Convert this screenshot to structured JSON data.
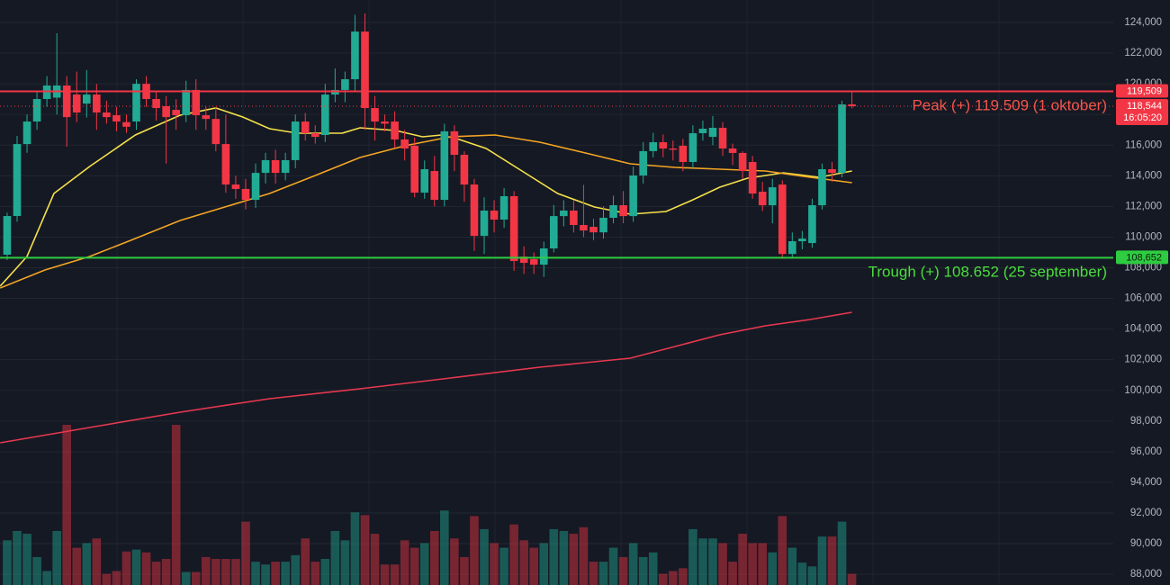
{
  "chart_data": {
    "type": "candlestick",
    "up_color": "#22ab94",
    "down_color": "#f23645",
    "grid": true,
    "xlim": [
      -0.72,
      111.3
    ],
    "ylim": [
      87300,
      125470
    ],
    "yticks": [
      {
        "value": 88000,
        "label": "88,000"
      },
      {
        "value": 90000,
        "label": "90,000"
      },
      {
        "value": 92000,
        "label": "92,000"
      },
      {
        "value": 94000,
        "label": "94,000"
      },
      {
        "value": 96000,
        "label": "96,000"
      },
      {
        "value": 98000,
        "label": "98,000"
      },
      {
        "value": 100000,
        "label": "100,000"
      },
      {
        "value": 102000,
        "label": "102,000"
      },
      {
        "value": 104000,
        "label": "104,000"
      },
      {
        "value": 106000,
        "label": "106,000"
      },
      {
        "value": 108000,
        "label": "108,000"
      },
      {
        "value": 110000,
        "label": "110,000"
      },
      {
        "value": 112000,
        "label": "112,000"
      },
      {
        "value": 114000,
        "label": "114,000"
      },
      {
        "value": 116000,
        "label": "116,000"
      },
      {
        "value": 118000,
        "label": "118,000"
      },
      {
        "value": 120000,
        "label": "120,000"
      },
      {
        "value": 122000,
        "label": "122,000"
      },
      {
        "value": 124000,
        "label": "124,000"
      }
    ],
    "open": [
      108850,
      111375,
      116070,
      117540,
      119010,
      119100,
      119890,
      119300,
      118710,
      119300,
      118130,
      117950,
      117500,
      117540,
      120000,
      119010,
      118540,
      118300,
      117950,
      119600,
      117950,
      117710,
      116070,
      113430,
      113140,
      112430,
      114190,
      115020,
      114190,
      115020,
      117540,
      116780,
      116660,
      119300,
      119600,
      120300,
      123410,
      118420,
      117540,
      117540,
      116370,
      115960,
      112900,
      114310,
      112430,
      116900,
      115370,
      113430,
      110080,
      111730,
      111140,
      112670,
      108730,
      108560,
      108200,
      109260,
      111370,
      111730,
      110790,
      110670,
      110310,
      111260,
      112080,
      111370,
      114020,
      115610,
      116190,
      115780,
      115960,
      114900,
      116780,
      116540,
      117130,
      115780,
      115490,
      114900,
      112960,
      112080,
      113430,
      108900,
      109730,
      109610,
      112080,
      114430,
      114190,
      118660
    ],
    "high": [
      111600,
      116600,
      118000,
      119500,
      120500,
      123300,
      120500,
      120800,
      120900,
      120000,
      118900,
      118500,
      118000,
      120300,
      120500,
      119500,
      119200,
      119000,
      120200,
      120300,
      118500,
      118500,
      118000,
      114000,
      113800,
      114800,
      115500,
      115700,
      115500,
      118000,
      118100,
      117300,
      120000,
      121000,
      120800,
      124500,
      124600,
      119200,
      118000,
      118200,
      117000,
      116500,
      115000,
      115300,
      117400,
      117300,
      115600,
      113800,
      112600,
      112400,
      113200,
      113000,
      109400,
      109000,
      109700,
      112100,
      112400,
      112400,
      113400,
      111200,
      112000,
      112700,
      113000,
      114600,
      116200,
      116800,
      116700,
      116300,
      116400,
      117300,
      117600,
      117900,
      117500,
      116100,
      115600,
      115300,
      113600,
      113800,
      113700,
      110300,
      110400,
      112500,
      114800,
      114900,
      118900,
      119509
    ],
    "low": [
      108500,
      111000,
      115500,
      117000,
      118500,
      118000,
      115900,
      117500,
      117800,
      117000,
      117400,
      116900,
      116800,
      117000,
      118500,
      117600,
      114800,
      117000,
      117500,
      117000,
      117000,
      115600,
      112900,
      112500,
      111800,
      111900,
      113500,
      113500,
      113700,
      114500,
      116300,
      116100,
      116200,
      118800,
      118800,
      119500,
      117000,
      116300,
      116900,
      115800,
      115000,
      112600,
      112500,
      112000,
      112000,
      114300,
      112300,
      109100,
      108900,
      110300,
      110600,
      107800,
      107600,
      107600,
      107400,
      109000,
      110700,
      110300,
      110000,
      109800,
      109900,
      110900,
      110900,
      111000,
      113500,
      115200,
      115200,
      115000,
      114300,
      114500,
      116300,
      116000,
      115300,
      114700,
      113800,
      112500,
      111700,
      110900,
      108600,
      108700,
      109200,
      109300,
      111800,
      113600,
      113900,
      118400
    ],
    "close": [
      111375,
      116070,
      117540,
      119010,
      119890,
      119890,
      117830,
      118130,
      119300,
      118130,
      117830,
      117540,
      117200,
      120000,
      119010,
      118420,
      117830,
      117950,
      119600,
      117950,
      117710,
      116070,
      113430,
      113140,
      112430,
      114190,
      115020,
      114190,
      115020,
      117540,
      116780,
      116540,
      119300,
      119600,
      120300,
      123410,
      118420,
      117540,
      117400,
      116370,
      115780,
      112900,
      114430,
      112430,
      116900,
      115370,
      113430,
      110080,
      111730,
      111140,
      112670,
      108440,
      108320,
      108200,
      109260,
      111370,
      111730,
      110790,
      110430,
      110310,
      111260,
      112080,
      111370,
      114020,
      115610,
      116190,
      115780,
      115700,
      114900,
      116780,
      117070,
      117130,
      115780,
      115490,
      114310,
      112840,
      112080,
      113250,
      108900,
      109730,
      109900,
      112080,
      114430,
      114190,
      118660,
      118544
    ],
    "volume": [
      48,
      58,
      55,
      30,
      15,
      58,
      172,
      40,
      45,
      50,
      12,
      15,
      36,
      38,
      35,
      25,
      28,
      172,
      14,
      14,
      30,
      28,
      28,
      28,
      68,
      25,
      22,
      25,
      25,
      32,
      50,
      25,
      28,
      58,
      48,
      78,
      75,
      55,
      22,
      22,
      48,
      40,
      45,
      58,
      80,
      50,
      30,
      74,
      60,
      45,
      40,
      65,
      48,
      40,
      45,
      60,
      58,
      55,
      62,
      25,
      25,
      40,
      30,
      45,
      30,
      35,
      12,
      15,
      18,
      60,
      50,
      50,
      45,
      25,
      55,
      45,
      45,
      35,
      74,
      40,
      24,
      20,
      52,
      52,
      68,
      12
    ],
    "series": [
      {
        "color": "#f5e14a",
        "x": [
          -0.7,
          2.0,
          4.7,
          8.3,
          12.9,
          17.4,
          21.0,
          23.7,
          26.4,
          29.2,
          33.7,
          35.5,
          39.1,
          41.8,
          43.7,
          45.5,
          48.2,
          51.8,
          55.4,
          59.1,
          62.7,
          66.3,
          69.0,
          71.7,
          74.5,
          78.1,
          81.7,
          85.0
        ],
        "values": [
          106795,
          108733,
          112843,
          114605,
          116660,
          117952,
          118422,
          117834,
          117071,
          116777,
          116777,
          117130,
          116954,
          116543,
          116660,
          116366,
          115779,
          114311,
          112843,
          111962,
          111493,
          111669,
          112432,
          113254,
          113841,
          114194,
          113900,
          114311
        ]
      },
      {
        "color": "#f5a623",
        "x": [
          -0.7,
          3.8,
          8.3,
          12.9,
          17.4,
          21.9,
          26.4,
          31.0,
          35.5,
          40.0,
          44.6,
          49.1,
          53.6,
          58.2,
          62.7,
          67.2,
          71.7,
          76.3,
          80.8,
          85.0
        ],
        "values": [
          106678,
          107852,
          108733,
          109907,
          111082,
          111962,
          112843,
          114018,
          115192,
          115955,
          116543,
          116660,
          116190,
          115486,
          114781,
          114546,
          114429,
          114311,
          113900,
          113548
        ]
      },
      {
        "color": "#e8384f",
        "x": [
          -0.7,
          8.3,
          17.4,
          26.4,
          35.5,
          44.6,
          53.6,
          62.7,
          67.2,
          71.7,
          76.3,
          80.8,
          85.0
        ],
        "values": [
          96578,
          97576,
          98574,
          99455,
          100101,
          100806,
          101510,
          102097,
          102861,
          103624,
          104211,
          104622,
          105092
        ]
      }
    ],
    "peak": {
      "value": 119509,
      "label": "119,509",
      "text": "Peak (+) 119.509 (1 oktober)",
      "color": "#f23645",
      "text_color": "#f2554a"
    },
    "trough": {
      "value": 108652,
      "label": "108,652",
      "text": "Trough (+) 108.652 (25 september)",
      "color": "#2ecc40",
      "text_color": "#4ade3c"
    },
    "last_price": {
      "value": 118544,
      "label": "118,544",
      "countdown": "16:05:20",
      "color": "#f23645"
    }
  }
}
